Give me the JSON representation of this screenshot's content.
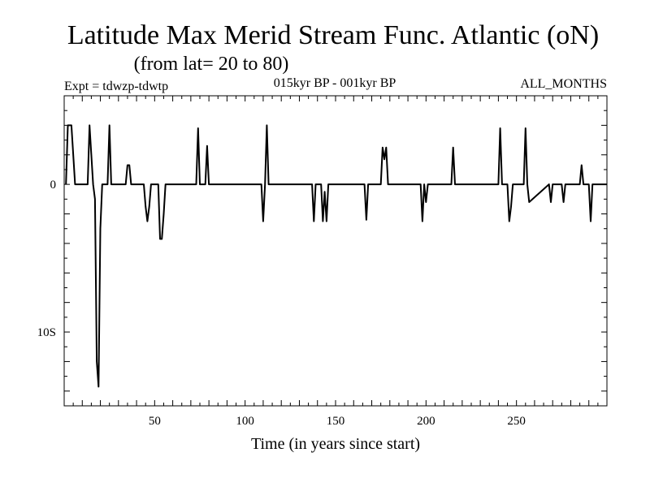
{
  "header": {
    "title": "Latitude Max Merid Stream Func. Atlantic (oN)",
    "subtitle": "(from lat= 20 to 80)",
    "experiment": "Expt = tdwzp-tdwtp",
    "period": "015kyr BP - 001kyr BP",
    "months": "ALL_MONTHS"
  },
  "chart_data": {
    "type": "line",
    "title": "Latitude Max Merid Stream Func. Atlantic (oN)",
    "subtitle": "(from lat= 20 to 80)",
    "xlabel": "Time (in years since start)",
    "ylabel": "",
    "xlim": [
      0,
      300
    ],
    "ylim": [
      -15,
      6
    ],
    "grid": false,
    "x_ticks": [
      {
        "value": 50,
        "label": "50"
      },
      {
        "value": 100,
        "label": "100"
      },
      {
        "value": 150,
        "label": "150"
      },
      {
        "value": 200,
        "label": "200"
      },
      {
        "value": 250,
        "label": "250"
      }
    ],
    "y_ticks": [
      {
        "value": 0,
        "label": "0"
      },
      {
        "value": -10,
        "label": "10S"
      }
    ],
    "series": [
      {
        "color": "#000000",
        "x": [
          1,
          2,
          4,
          6,
          8,
          13,
          14,
          15,
          16,
          17,
          18,
          19,
          20,
          21,
          22,
          24,
          25,
          26,
          34,
          35,
          36,
          37,
          38,
          44,
          45,
          46,
          47,
          48,
          52,
          53,
          54,
          55,
          56,
          73,
          74,
          75,
          78,
          79,
          80,
          108,
          109,
          110,
          111,
          112,
          113,
          137,
          138,
          139,
          142,
          143,
          144,
          145,
          146,
          166,
          167,
          168,
          175,
          176,
          177,
          178,
          179,
          197,
          198,
          199,
          200,
          201,
          202,
          214,
          215,
          216,
          240,
          241,
          242,
          245,
          246,
          247,
          248,
          254,
          255,
          256,
          257,
          268,
          269,
          270,
          275,
          276,
          277,
          285,
          286,
          287,
          290,
          291,
          292,
          300
        ],
        "y": [
          0,
          4,
          4,
          0,
          0,
          0,
          4,
          2,
          0,
          -1,
          -12,
          -13.7,
          -3,
          0,
          0,
          0,
          4,
          0,
          0,
          1.3,
          1.3,
          0,
          0,
          0,
          -1.5,
          -2.5,
          -1.5,
          0,
          0,
          -3.7,
          -3.7,
          -2,
          0,
          0,
          3.8,
          0,
          0,
          2.6,
          0,
          0,
          0,
          -2.5,
          0,
          4,
          0,
          0,
          -2.5,
          0,
          0,
          -2.5,
          -0.5,
          -2.5,
          0,
          0,
          -2.4,
          0,
          0,
          2.5,
          1.7,
          2.5,
          0,
          0,
          -2.5,
          0,
          -1.2,
          0,
          0,
          0,
          2.5,
          0,
          0,
          3.8,
          0,
          0,
          -2.5,
          -1.5,
          0,
          0,
          3.8,
          0,
          -1.2,
          0,
          -1.2,
          0,
          0,
          -1.2,
          0,
          0,
          1.3,
          0,
          0,
          -2.5,
          0,
          0
        ]
      }
    ]
  }
}
